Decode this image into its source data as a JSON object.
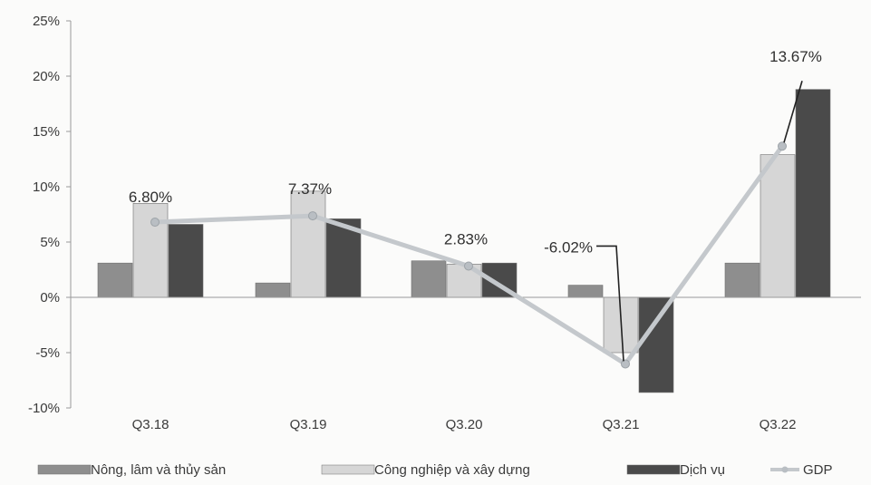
{
  "chart_data": {
    "type": "bar",
    "categories": [
      "Q3.18",
      "Q3.19",
      "Q3.20",
      "Q3.21",
      "Q3.22"
    ],
    "ylim": [
      -10,
      25
    ],
    "yticks": [
      -10,
      -5,
      0,
      5,
      10,
      15,
      20,
      25
    ],
    "ytick_labels": [
      "-10%",
      "-5%",
      "0%",
      "5%",
      "10%",
      "15%",
      "20%",
      "25%"
    ],
    "series": [
      {
        "name": "Nông, lâm và thủy sản",
        "kind": "bar",
        "color": "#8e8e8e",
        "values": [
          3.1,
          1.3,
          3.3,
          1.1,
          3.1
        ]
      },
      {
        "name": "Công nghiệp và xây dựng",
        "kind": "bar",
        "color": "#d6d6d6",
        "values": [
          8.5,
          9.6,
          3.0,
          -5.0,
          12.9
        ]
      },
      {
        "name": "Dịch vụ",
        "kind": "bar",
        "color": "#4a4a4a",
        "values": [
          6.6,
          7.1,
          3.1,
          -8.6,
          18.8
        ]
      },
      {
        "name": "GDP",
        "kind": "line",
        "color": "#c4c8cc",
        "values": [
          6.8,
          7.37,
          2.83,
          -6.02,
          13.67
        ]
      }
    ],
    "data_labels": [
      "6.80%",
      "7.37%",
      "2.83%",
      "-6.02%",
      "13.67%"
    ],
    "legend": "bottom",
    "grid": false
  }
}
